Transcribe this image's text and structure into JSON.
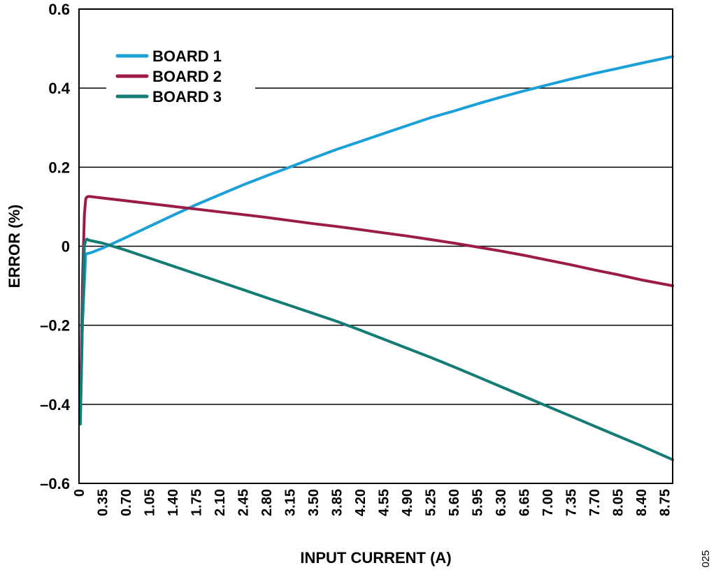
{
  "chart_data": {
    "type": "line",
    "xlabel": "INPUT CURRENT (A)",
    "ylabel": "ERROR (%)",
    "xlim": [
      0,
      8.87
    ],
    "ylim": [
      -0.6,
      0.6
    ],
    "x_ticks": [
      "0",
      "0.35",
      "0.70",
      "1.05",
      "1.40",
      "1.75",
      "2.10",
      "2.45",
      "2.80",
      "3.15",
      "3.50",
      "3.85",
      "4.20",
      "4.55",
      "4.90",
      "5.25",
      "5.60",
      "5.95",
      "6.30",
      "6.65",
      "7.00",
      "7.35",
      "7.70",
      "8.05",
      "8.40",
      "8.75"
    ],
    "y_ticks": [
      "0.6",
      "0.4",
      "0.2",
      "0",
      "–0.2",
      "–0.4",
      "–0.6"
    ],
    "grid": "horizontal",
    "legend_position": "top-left",
    "figure_id": "025",
    "series": [
      {
        "name": "BOARD 1",
        "color": "#1BA1D8",
        "x": [
          0.02,
          0.05,
          0.1,
          0.2,
          0.35,
          0.7,
          1.05,
          1.4,
          1.75,
          2.1,
          2.45,
          2.8,
          3.15,
          3.5,
          3.85,
          4.2,
          4.55,
          4.9,
          5.25,
          5.6,
          5.95,
          6.3,
          6.65,
          7.0,
          7.35,
          7.7,
          8.05,
          8.4,
          8.87
        ],
        "y": [
          -0.44,
          -0.2,
          -0.02,
          -0.015,
          -0.005,
          0.022,
          0.05,
          0.078,
          0.105,
          0.13,
          0.155,
          0.178,
          0.2,
          0.223,
          0.245,
          0.265,
          0.285,
          0.305,
          0.325,
          0.342,
          0.36,
          0.377,
          0.393,
          0.408,
          0.423,
          0.437,
          0.45,
          0.463,
          0.48
        ]
      },
      {
        "name": "BOARD 2",
        "color": "#9C1C48",
        "x": [
          0.02,
          0.05,
          0.08,
          0.1,
          0.12,
          0.15,
          0.35,
          0.7,
          1.05,
          1.4,
          1.75,
          2.1,
          2.45,
          2.8,
          3.15,
          3.5,
          3.85,
          4.2,
          4.55,
          4.9,
          5.25,
          5.6,
          5.95,
          6.3,
          6.65,
          7.0,
          7.35,
          7.7,
          8.05,
          8.4,
          8.87
        ],
        "y": [
          -0.43,
          -0.1,
          0.08,
          0.12,
          0.125,
          0.126,
          0.122,
          0.115,
          0.108,
          0.101,
          0.094,
          0.087,
          0.08,
          0.073,
          0.065,
          0.057,
          0.05,
          0.042,
          0.034,
          0.026,
          0.017,
          0.008,
          -0.002,
          -0.012,
          -0.023,
          -0.035,
          -0.047,
          -0.06,
          -0.072,
          -0.085,
          -0.1
        ]
      },
      {
        "name": "BOARD 3",
        "color": "#137C74",
        "x": [
          0.02,
          0.05,
          0.08,
          0.1,
          0.12,
          0.15,
          0.35,
          0.7,
          1.05,
          1.4,
          1.75,
          2.1,
          2.45,
          2.8,
          3.15,
          3.5,
          3.85,
          4.2,
          4.55,
          4.9,
          5.25,
          5.6,
          5.95,
          6.3,
          6.65,
          7.0,
          7.35,
          7.7,
          8.05,
          8.4,
          8.87
        ],
        "y": [
          -0.45,
          -0.2,
          0.0,
          0.015,
          0.018,
          0.015,
          0.008,
          -0.01,
          -0.03,
          -0.05,
          -0.07,
          -0.09,
          -0.11,
          -0.13,
          -0.15,
          -0.17,
          -0.19,
          -0.212,
          -0.235,
          -0.258,
          -0.281,
          -0.305,
          -0.33,
          -0.355,
          -0.38,
          -0.405,
          -0.43,
          -0.455,
          -0.48,
          -0.505,
          -0.54
        ]
      }
    ]
  }
}
